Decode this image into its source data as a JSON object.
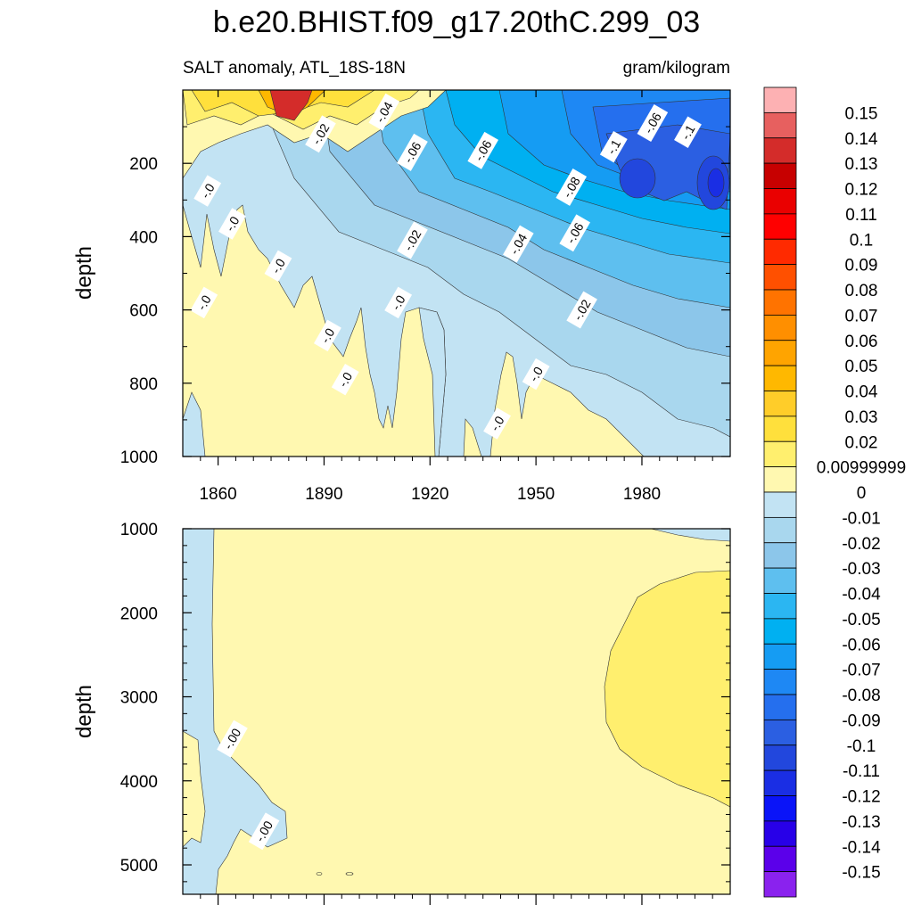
{
  "chart_data": [
    {
      "type": "heatmap",
      "panel": "upper",
      "title": "b.e20.BHIST.f09_g17.20thC.299_03",
      "subtitle_left": "SALT anomaly, ATL_18S-18N",
      "subtitle_right": "gram/kilogram",
      "ylabel": "depth",
      "xlabel": "",
      "xlim": [
        1850,
        2005
      ],
      "ylim": [
        1000,
        0
      ],
      "y_reversed": true,
      "x_ticks": [
        1860,
        1890,
        1920,
        1950,
        1980
      ],
      "x_tick_labels": [
        "1860",
        "1890",
        "1920",
        "1950",
        "1980"
      ],
      "y_ticks": [
        200,
        400,
        600,
        800,
        1000
      ],
      "y_tick_labels": [
        "200",
        "400",
        "600",
        "800",
        "1000"
      ],
      "contour_labels": [
        {
          "text": "-.04",
          "x": 1907,
          "y": 60
        },
        {
          "text": "-.02",
          "x": 1889,
          "y": 120
        },
        {
          "text": "-.06",
          "x": 1915,
          "y": 170
        },
        {
          "text": "-.06",
          "x": 1935,
          "y": 165
        },
        {
          "text": "-.06",
          "x": 1983,
          "y": 90
        },
        {
          "text": "-.1",
          "x": 1972,
          "y": 155
        },
        {
          "text": "-.1",
          "x": 1993,
          "y": 115
        },
        {
          "text": "-.08",
          "x": 1960,
          "y": 265
        },
        {
          "text": "-.0",
          "x": 1857,
          "y": 275
        },
        {
          "text": "-.0",
          "x": 1864,
          "y": 365
        },
        {
          "text": "-.02",
          "x": 1915,
          "y": 410
        },
        {
          "text": "-.04",
          "x": 1945,
          "y": 420
        },
        {
          "text": "-.06",
          "x": 1961,
          "y": 390
        },
        {
          "text": "-.0",
          "x": 1877,
          "y": 480
        },
        {
          "text": "-.0",
          "x": 1856,
          "y": 580
        },
        {
          "text": "-.0",
          "x": 1911,
          "y": 580
        },
        {
          "text": "-.02",
          "x": 1963,
          "y": 600
        },
        {
          "text": "-.0",
          "x": 1891,
          "y": 670
        },
        {
          "text": "-.0",
          "x": 1950,
          "y": 775
        },
        {
          "text": "-.0",
          "x": 1896,
          "y": 790
        },
        {
          "text": "-.0",
          "x": 1939,
          "y": 910
        }
      ]
    },
    {
      "type": "heatmap",
      "panel": "lower",
      "ylabel": "depth",
      "xlim": [
        1850,
        2005
      ],
      "ylim": [
        5350,
        1000
      ],
      "y_reversed": true,
      "y_ticks": [
        1000,
        2000,
        3000,
        4000,
        5000
      ],
      "y_tick_labels": [
        "1000",
        "2000",
        "3000",
        "4000",
        "5000"
      ],
      "contour_labels": [
        {
          "text": "-.00",
          "x": 1864,
          "y": 3500
        },
        {
          "text": "-.00",
          "x": 1873,
          "y": 4600
        }
      ]
    }
  ],
  "colorbar": {
    "label_values": [
      "0.15",
      "0.14",
      "0.13",
      "0.12",
      "0.11",
      "0.1",
      "0.09",
      "0.08",
      "0.07",
      "0.06",
      "0.05",
      "0.04",
      "0.03",
      "0.02",
      "0.00999999",
      "0",
      "-0.01",
      "-0.02",
      "-0.03",
      "-0.04",
      "-0.05",
      "-0.06",
      "-0.07",
      "-0.08",
      "-0.09",
      "-0.1",
      "-0.11",
      "-0.12",
      "-0.13",
      "-0.14",
      "-0.15"
    ],
    "colors": [
      "#fdb1b3",
      "#e7605f",
      "#d42c2a",
      "#c70000",
      "#ea0000",
      "#ff0000",
      "#ff2a00",
      "#ff5000",
      "#ff7300",
      "#ff8f00",
      "#ffa400",
      "#ffb800",
      "#ffcd29",
      "#ffe03c",
      "#ffef6e",
      "#fff8b0",
      "#c2e3f3",
      "#a9d7ee",
      "#8cc6ea",
      "#5ebfef",
      "#2bb6f2",
      "#00b0f1",
      "#159cf3",
      "#1e88f4",
      "#256fee",
      "#2b5fe2",
      "#2247dd",
      "#1a2ee4",
      "#0a14f8",
      "#2800e8",
      "#5b00ea",
      "#8a22ee"
    ]
  }
}
